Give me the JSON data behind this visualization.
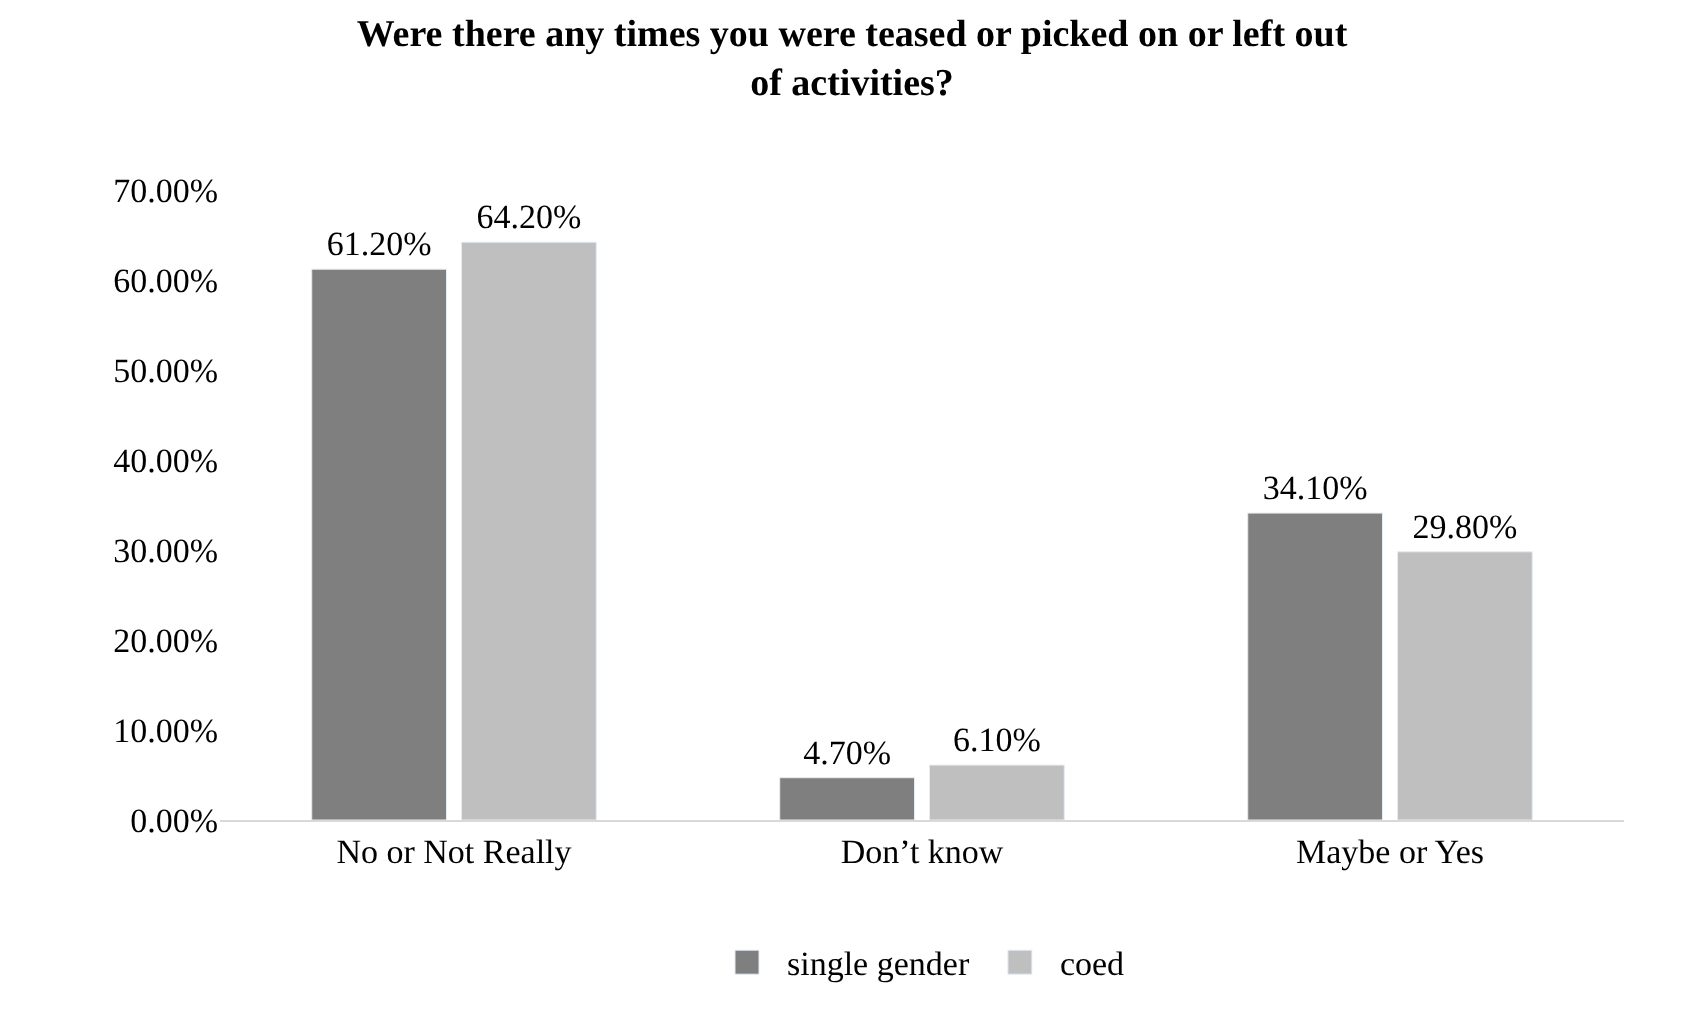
{
  "chart_data": {
    "type": "bar",
    "title": "Were there any times you were teased or picked on or left out of activities?",
    "categories": [
      "No or Not Really",
      "Don’t know",
      "Maybe or Yes"
    ],
    "series": [
      {
        "name": "single gender",
        "color": "#7f7f7f",
        "values": [
          61.2,
          4.7,
          34.1
        ],
        "value_labels": [
          "61.20%",
          "4.70%",
          "34.10%"
        ]
      },
      {
        "name": "coed",
        "color": "#bfbfbf",
        "values": [
          64.2,
          6.1,
          29.8
        ],
        "value_labels": [
          "64.20%",
          "6.10%",
          "29.80%"
        ]
      }
    ],
    "ylim": [
      0,
      70
    ],
    "yticks": [
      {
        "value": 0,
        "label": "0.00%"
      },
      {
        "value": 10,
        "label": "10.00%"
      },
      {
        "value": 20,
        "label": "20.00%"
      },
      {
        "value": 30,
        "label": "30.00%"
      },
      {
        "value": 40,
        "label": "40.00%"
      },
      {
        "value": 50,
        "label": "50.00%"
      },
      {
        "value": 60,
        "label": "60.00%"
      },
      {
        "value": 70,
        "label": "70.00%"
      }
    ],
    "grid": false,
    "legend": "bottom"
  }
}
